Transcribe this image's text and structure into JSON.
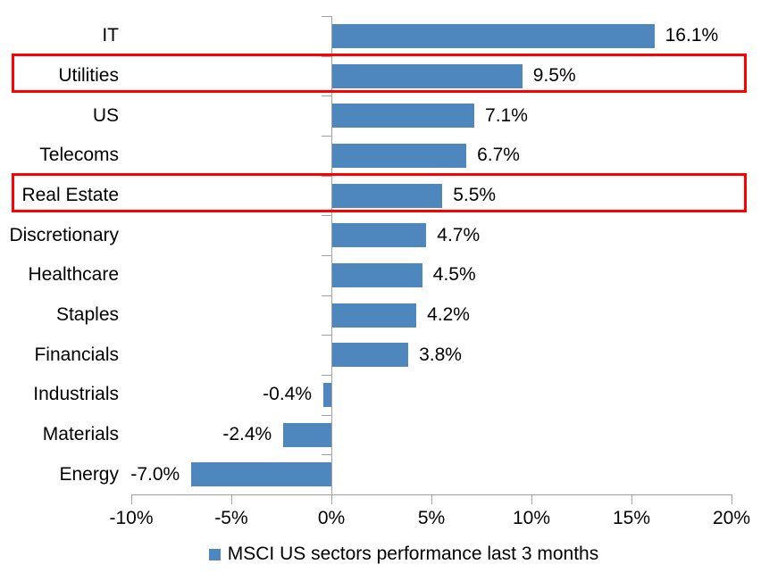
{
  "chart_data": {
    "type": "bar",
    "orientation": "horizontal",
    "categories": [
      "IT",
      "Utilities",
      "US",
      "Telecoms",
      "Real Estate",
      "Discretionary",
      "Healthcare",
      "Staples",
      "Financials",
      "Industrials",
      "Materials",
      "Energy"
    ],
    "values": [
      16.1,
      9.5,
      7.1,
      6.7,
      5.5,
      4.7,
      4.5,
      4.2,
      3.8,
      -0.4,
      -2.4,
      -7.0
    ],
    "value_labels": [
      "16.1%",
      "9.5%",
      "7.1%",
      "6.7%",
      "5.5%",
      "4.7%",
      "4.5%",
      "4.2%",
      "3.8%",
      "-0.4%",
      "-2.4%",
      "-7.0%"
    ],
    "highlighted_categories": [
      "Utilities",
      "Real Estate"
    ],
    "x_axis": {
      "min": -10,
      "max": 20,
      "tick_values": [
        -10,
        -5,
        0,
        5,
        10,
        15,
        20
      ],
      "tick_labels": [
        "-10%",
        "-5%",
        "0%",
        "5%",
        "10%",
        "15%",
        "20%"
      ]
    },
    "grid": false,
    "legend": {
      "position": "bottom",
      "label": "MSCI US sectors performance last 3 months"
    },
    "colors": {
      "bar": "#4E86BE",
      "axis": "#A0A0A0",
      "highlight_box": "#FF0000",
      "text": "#000000",
      "background": "#FFFFFF"
    }
  }
}
